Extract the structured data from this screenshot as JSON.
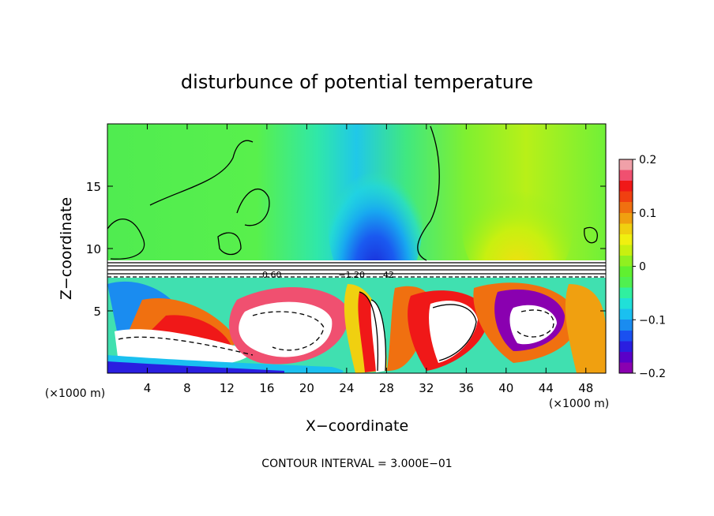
{
  "chart_data": {
    "type": "heatmap",
    "title": "disturbunce of potential temperature",
    "xlabel": "X−coordinate",
    "ylabel": "Z−coordinate",
    "x_unit_left": "(×1000 m)",
    "x_unit_right": "(×1000 m)",
    "footer": "CONTOUR INTERVAL = 3.000E−01",
    "xlim": [
      0,
      50
    ],
    "ylim": [
      0,
      20
    ],
    "x_ticks": [
      4,
      8,
      12,
      16,
      20,
      24,
      28,
      32,
      36,
      40,
      44,
      48
    ],
    "y_ticks": [
      5,
      10,
      15
    ],
    "colorbar": {
      "range": [
        -0.2,
        0.2
      ],
      "ticks": [
        {
          "value": 0.2,
          "label": "0.2"
        },
        {
          "value": 0.1,
          "label": "0.1"
        },
        {
          "value": 0,
          "label": "0"
        },
        {
          "value": -0.1,
          "label": "−0.1"
        },
        {
          "value": -0.2,
          "label": "−0.2"
        }
      ],
      "colors": [
        "#8a00b0",
        "#5a00c8",
        "#2a1ee0",
        "#1a50f0",
        "#1a8cf0",
        "#1ac0f0",
        "#20e0d8",
        "#30f0a0",
        "#50f050",
        "#60f030",
        "#90f020",
        "#c8f010",
        "#f0f010",
        "#f0d010",
        "#f0a010",
        "#f07010",
        "#f04010",
        "#f01818",
        "#f05070",
        "#f0a0a8"
      ]
    },
    "contour_labels": [
      {
        "x": 16.5,
        "y": 7.9,
        "text": "0.60"
      },
      {
        "x": 24.5,
        "y": 7.9,
        "text": "−1.20"
      },
      {
        "x": 28.2,
        "y": 7.9,
        "text": "42"
      }
    ],
    "features": [
      {
        "name": "upper-layer",
        "z_range": [
          9,
          20
        ],
        "dominant_value": 0.0
      },
      {
        "name": "stable-band",
        "z_range": [
          7.6,
          9.0
        ]
      },
      {
        "name": "wave-plume",
        "x_center": 27,
        "z_range": [
          9.5,
          15
        ],
        "min_value": -0.15
      },
      {
        "name": "turbulent-layer",
        "z_range": [
          0,
          7.5
        ]
      }
    ]
  }
}
